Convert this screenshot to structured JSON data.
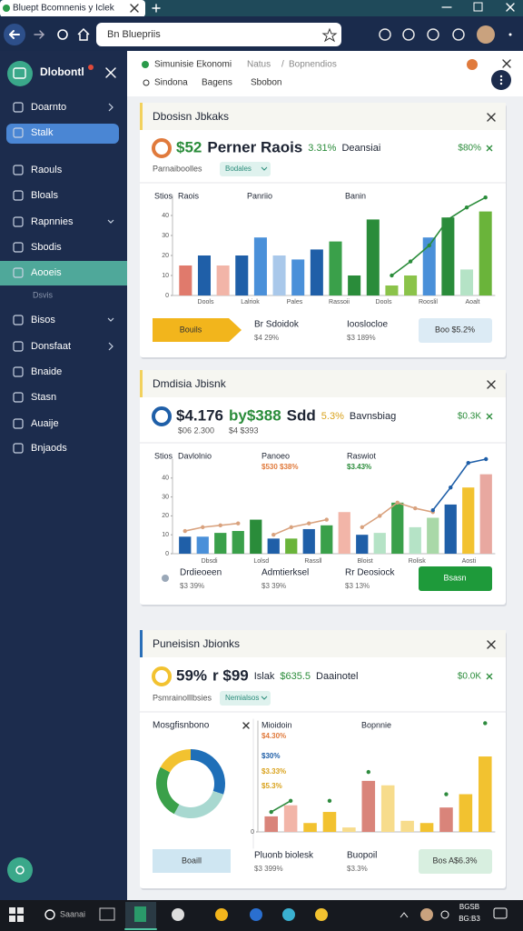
{
  "browser": {
    "tab_title": "Bluept Bcomnenis y Iclek",
    "address": "Bn Bluepriis"
  },
  "sidebar": {
    "brand": "Dlobontl",
    "items": [
      "Doarnto",
      "Stalk",
      "Raouls",
      "Bloals",
      "Rapnnies",
      "Sbodis",
      "Aooeis",
      "Dsvis",
      "Bisos",
      "Donsfaat",
      "Bnaide",
      "Stasn",
      "Auaije",
      "Bnjaods"
    ]
  },
  "header": {
    "breadcrumb": [
      "Simunisie Ekonomi",
      "Natus",
      "/",
      "Bopnendios"
    ],
    "tabs": [
      "Sindona",
      "Bagens",
      "Sbobon"
    ]
  },
  "cards": [
    {
      "title": "Dbosisn Jbkaks",
      "accent": "#f2d15c",
      "headline": [
        {
          "text": "$52",
          "color": "#2a8c3a"
        },
        {
          "text": "Perner Raois",
          "color": "#1d2433"
        },
        {
          "text": "3.31%",
          "color": "#2a8c3a"
        },
        {
          "text": "Deansiai",
          "color": "#1d2433"
        }
      ],
      "change": {
        "text": "$80%",
        "color": "#2a8c3a"
      },
      "filter": [
        "Parnaiboolles",
        "Bodales"
      ],
      "chart": {
        "labels": [
          "Stios",
          "Raois",
          "Panriio",
          "Banin"
        ],
        "tags": [],
        "ylim": [
          0,
          50
        ],
        "yticks": [
          0,
          10,
          20,
          30,
          40
        ],
        "x_labels": [
          "Dools",
          "Lalriok",
          "Pales",
          "Rassoii",
          "Dools",
          "Rooslil",
          "Aoalt"
        ],
        "bars": {
          "values": [
            15,
            20,
            15,
            20,
            29,
            20,
            18,
            23,
            27,
            10,
            38,
            5,
            10,
            29,
            39,
            13,
            42
          ],
          "colors": [
            "#e07a6c",
            "#1f5fa8",
            "#f2b5a8",
            "#1f5fa8",
            "#4a90d9",
            "#a9c8ea",
            "#4a90d9",
            "#1f5fa8",
            "#3aa04a",
            "#2a8c3a",
            "#2a8c3a",
            "#8bc34a",
            "#8bc34a",
            "#4a90d9",
            "#2a8c3a",
            "#b5e3c6",
            "#6ab43a"
          ]
        },
        "lines": [
          {
            "color": "#2a8c3a",
            "values": [
              null,
              null,
              null,
              null,
              null,
              null,
              null,
              null,
              null,
              null,
              null,
              10,
              17,
              25,
              38,
              44,
              49
            ]
          }
        ]
      },
      "footer": {
        "left_button": {
          "text": "Bouils",
          "color": "#f2b51c"
        },
        "stats": [
          {
            "label": "Br Sdoidok",
            "value": "$4 29%"
          },
          {
            "label": "Iooslocloe",
            "value": "$3 189%"
          }
        ],
        "right_button": {
          "text": "Boo $5.2%",
          "color": "#dcebf5"
        }
      }
    },
    {
      "title": "Dmdisia Jbisnk",
      "accent": "#f2d15c",
      "headline": [
        {
          "text": "$4.176",
          "color": "#1d2433"
        },
        {
          "text": "by$388",
          "color": "#2a8c3a"
        },
        {
          "text": "Sdd",
          "color": "#1d2433"
        },
        {
          "text": "5.3%",
          "color": "#d9a21c"
        },
        {
          "text": "Bavnsbiag",
          "color": "#1d2433"
        }
      ],
      "change": {
        "text": "$0.3K",
        "color": "#2a8c3a"
      },
      "subline": [
        "$06 2.300",
        "$4 $393"
      ],
      "chart": {
        "labels": [
          "Stios",
          "Davlolnio",
          "Panoeo",
          "Raswiot"
        ],
        "tags": [
          {
            "text": "$530 $38%",
            "color": "#e07a3c"
          },
          {
            "text": "$3.43%",
            "color": "#2a8c3a"
          }
        ],
        "ylim": [
          0,
          50
        ],
        "yticks": [
          0,
          10,
          20,
          30,
          40
        ],
        "x_labels": [
          "Dbsdi",
          "Lolsd",
          "Rassll",
          "Bloist",
          "Rolisk",
          "Aosti"
        ],
        "bars": {
          "values": [
            9,
            9,
            11,
            12,
            18,
            8,
            8,
            13,
            15,
            22,
            10,
            11,
            27,
            14,
            19,
            26,
            35,
            42
          ],
          "colors": [
            "#1f5fa8",
            "#4a90d9",
            "#3aa04a",
            "#3aa04a",
            "#2a8c3a",
            "#1f5fa8",
            "#6ab43a",
            "#1f5fa8",
            "#3aa04a",
            "#f2b5a8",
            "#1f5fa8",
            "#b5e3c6",
            "#3aa04a",
            "#b5e3c6",
            "#a9d8a8",
            "#1f5fa8",
            "#f2c230",
            "#e8a8a0"
          ]
        },
        "lines": [
          {
            "color": "#d9a27e",
            "values": [
              12,
              14,
              15,
              16,
              null,
              10,
              14,
              16,
              18,
              null,
              14,
              20,
              27,
              24,
              22,
              null,
              null,
              null
            ]
          },
          {
            "color": "#1f5fa8",
            "values": [
              null,
              null,
              null,
              null,
              null,
              null,
              null,
              null,
              null,
              null,
              null,
              null,
              null,
              null,
              23,
              35,
              48,
              50
            ]
          }
        ]
      },
      "footer": {
        "stats": [
          {
            "label": "Drdieoeen",
            "value": "$3 39%"
          },
          {
            "label": "Admtierksel",
            "value": "$3 39%"
          },
          {
            "label": "Rr Deosiock",
            "value": "$3 13%"
          }
        ],
        "right_button": {
          "text": "Bsasn",
          "color": "#1e9a3a"
        }
      }
    },
    {
      "title": "Puneisisn Jbionks",
      "accent": "#2a6fb8",
      "headline": [
        {
          "text": "59%",
          "color": "#1d2433"
        },
        {
          "text": "r $99",
          "color": "#1d2433"
        },
        {
          "text": "Islak",
          "color": "#1d2433"
        },
        {
          "text": "$635.5",
          "color": "#2a8c3a"
        },
        {
          "text": "Daainotel",
          "color": "#1d2433"
        }
      ],
      "change": {
        "text": "$0.0K",
        "color": "#2a8c3a"
      },
      "filter": [
        "Psmrainolllbsies",
        "Nemialsos"
      ],
      "donut": {
        "title": "Mosgfisnbono",
        "values": [
          30,
          28,
          25,
          17
        ],
        "colors": [
          "#1f6fb8",
          "#a8d8d0",
          "#3aa04a",
          "#f2c230"
        ]
      },
      "chart": {
        "labels": [
          "Mioidoin",
          "Bopnnie"
        ],
        "tags": [
          {
            "text": "$4.30%",
            "color": "#e07a3c"
          },
          {
            "text": "$30%",
            "color": "#1f5fa8"
          },
          {
            "text": "$3.33%",
            "color": "#d9a21c"
          },
          {
            "text": "$5.3%",
            "color": "#d9a21c"
          }
        ],
        "ylim": [
          0,
          50
        ],
        "yticks": [
          0
        ],
        "x_labels": [],
        "bars": {
          "values": [
            7,
            12,
            4,
            9,
            2,
            23,
            21,
            5,
            4,
            11,
            17,
            34
          ],
          "colors": [
            "#d9847a",
            "#f2b5a8",
            "#f2c230",
            "#f2c230",
            "#f7dc8c",
            "#d9847a",
            "#f7dc8c",
            "#f7dc8c",
            "#f2c230",
            "#d9847a",
            "#f2c230",
            "#f2c230"
          ]
        },
        "lines": [
          {
            "color": "#2e8b3e",
            "values": [
              9,
              14,
              null,
              14,
              null,
              27,
              null,
              null,
              null,
              17,
              null,
              49
            ]
          }
        ]
      },
      "footer": {
        "left_button": {
          "text": "Boaill",
          "color": "#cfe6f2"
        },
        "stats": [
          {
            "label": "Pluonb biolesk",
            "value": "$3 399%"
          },
          {
            "label": "Buopoil",
            "value": "$3.3%"
          }
        ],
        "right_button": {
          "text": "Bos A$6.3%",
          "color": "#d8efe0"
        }
      }
    }
  ],
  "taskbar": {
    "search": "Saanai",
    "clock": [
      "BGSB",
      "BG:B3"
    ]
  }
}
